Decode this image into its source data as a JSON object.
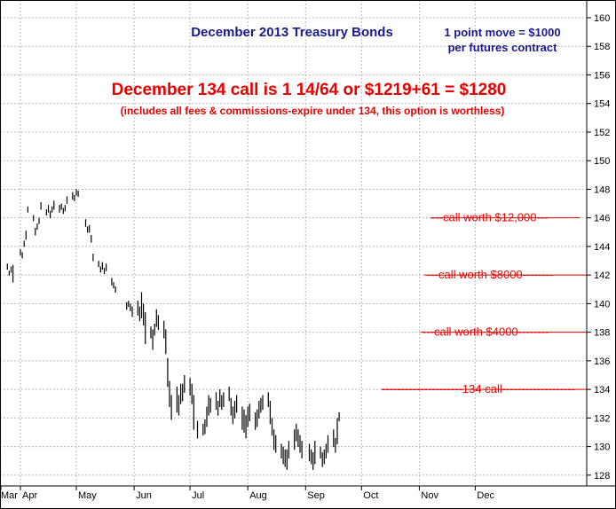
{
  "colors": {
    "title": "#1a1a8c",
    "headline": "#e60000",
    "levels": "#e60000",
    "price": "#000000",
    "grid": "#b8b8b8",
    "background": "#ffffff"
  },
  "chart_data": {
    "type": "ohlc",
    "title": "December 2013 Treasury Bonds",
    "note_line1": "1 point move = $1000",
    "note_line2": "per futures contract",
    "headline": "December 134 call is 1 14/64 or $1219+61 = $1280",
    "subheadline": "(includes all fees & commissions-expire under 134, this option is worthless)",
    "xlabel": "",
    "ylabel": "",
    "ylim": [
      127,
      161
    ],
    "y_ticks": [
      128,
      130,
      132,
      134,
      136,
      138,
      140,
      142,
      144,
      146,
      148,
      150,
      152,
      154,
      156,
      158,
      160
    ],
    "y_axis_position": "right",
    "grid": true,
    "x_ticks": [
      "Mar",
      "Apr",
      "May",
      "Jun",
      "Jul",
      "Aug",
      "Sep",
      "Oct",
      "Nov",
      "Dec"
    ],
    "levels": [
      {
        "label": "---call worth $12,000---",
        "value": 146
      },
      {
        "label": "---call worth $8000--------",
        "value": 142
      },
      {
        "label": "---call worth $4000--------",
        "value": 138
      },
      {
        "label": "---------------------134 call-------------------",
        "value": 134
      }
    ],
    "bars": [
      {
        "date": "2013-03-25",
        "high": 142.8,
        "low": 142.4
      },
      {
        "date": "2013-03-26",
        "high": 142.3,
        "low": 142.0
      },
      {
        "date": "2013-03-27",
        "high": 142.6,
        "low": 142.2
      },
      {
        "date": "2013-03-28",
        "high": 142.7,
        "low": 141.5
      },
      {
        "date": "2013-04-01",
        "high": 143.8,
        "low": 143.4
      },
      {
        "date": "2013-04-02",
        "high": 143.6,
        "low": 143.2
      },
      {
        "date": "2013-04-03",
        "high": 144.4,
        "low": 144.0
      },
      {
        "date": "2013-04-04",
        "high": 145.1,
        "low": 144.5
      },
      {
        "date": "2013-04-05",
        "high": 146.8,
        "low": 146.4
      },
      {
        "date": "2013-04-08",
        "high": 146.2,
        "low": 145.8
      },
      {
        "date": "2013-04-09",
        "high": 145.3,
        "low": 144.8
      },
      {
        "date": "2013-04-10",
        "high": 145.6,
        "low": 145.2
      },
      {
        "date": "2013-04-11",
        "high": 146.0,
        "low": 145.6
      },
      {
        "date": "2013-04-12",
        "high": 147.1,
        "low": 146.6
      },
      {
        "date": "2013-04-15",
        "high": 146.6,
        "low": 146.2
      },
      {
        "date": "2013-04-16",
        "high": 146.9,
        "low": 146.4
      },
      {
        "date": "2013-04-17",
        "high": 146.5,
        "low": 146.0
      },
      {
        "date": "2013-04-18",
        "high": 146.8,
        "low": 146.4
      },
      {
        "date": "2013-04-19",
        "high": 147.2,
        "low": 146.6
      },
      {
        "date": "2013-04-22",
        "high": 146.9,
        "low": 146.4
      },
      {
        "date": "2013-04-23",
        "high": 147.0,
        "low": 146.6
      },
      {
        "date": "2013-04-24",
        "high": 146.7,
        "low": 146.3
      },
      {
        "date": "2013-04-25",
        "high": 146.9,
        "low": 146.5
      },
      {
        "date": "2013-04-26",
        "high": 147.5,
        "low": 147.0
      },
      {
        "date": "2013-04-29",
        "high": 147.8,
        "low": 147.3
      },
      {
        "date": "2013-04-30",
        "high": 147.6,
        "low": 147.2
      },
      {
        "date": "2013-05-01",
        "high": 148.0,
        "low": 147.6
      },
      {
        "date": "2013-05-02",
        "high": 147.9,
        "low": 147.5
      },
      {
        "date": "2013-05-06",
        "high": 145.9,
        "low": 145.4
      },
      {
        "date": "2013-05-07",
        "high": 145.4,
        "low": 145.0
      },
      {
        "date": "2013-05-08",
        "high": 145.5,
        "low": 145.0
      },
      {
        "date": "2013-05-09",
        "high": 144.8,
        "low": 144.3
      },
      {
        "date": "2013-05-10",
        "high": 143.5,
        "low": 143.0
      },
      {
        "date": "2013-05-13",
        "high": 143.0,
        "low": 142.6
      },
      {
        "date": "2013-05-14",
        "high": 142.6,
        "low": 142.2
      },
      {
        "date": "2013-05-15",
        "high": 142.9,
        "low": 142.4
      },
      {
        "date": "2013-05-16",
        "high": 142.5,
        "low": 142.1
      },
      {
        "date": "2013-05-17",
        "high": 142.8,
        "low": 142.3
      },
      {
        "date": "2013-05-20",
        "high": 141.8,
        "low": 141.3
      },
      {
        "date": "2013-05-21",
        "high": 141.5,
        "low": 141.1
      },
      {
        "date": "2013-05-22",
        "high": 141.2,
        "low": 140.8
      },
      {
        "date": "2013-05-28",
        "high": 140.1,
        "low": 139.6
      },
      {
        "date": "2013-05-29",
        "high": 140.2,
        "low": 139.8
      },
      {
        "date": "2013-05-30",
        "high": 140.0,
        "low": 139.5
      },
      {
        "date": "2013-05-31",
        "high": 139.8,
        "low": 139.1
      },
      {
        "date": "2013-06-03",
        "high": 140.2,
        "low": 139.2
      },
      {
        "date": "2013-06-04",
        "high": 139.8,
        "low": 138.8
      },
      {
        "date": "2013-06-05",
        "high": 140.8,
        "low": 139.0
      },
      {
        "date": "2013-06-06",
        "high": 140.0,
        "low": 138.5
      },
      {
        "date": "2013-06-07",
        "high": 139.4,
        "low": 137.2
      },
      {
        "date": "2013-06-10",
        "high": 138.4,
        "low": 137.6
      },
      {
        "date": "2013-06-11",
        "high": 138.2,
        "low": 136.8
      },
      {
        "date": "2013-06-12",
        "high": 138.6,
        "low": 137.8
      },
      {
        "date": "2013-06-13",
        "high": 139.6,
        "low": 138.4
      },
      {
        "date": "2013-06-14",
        "high": 139.2,
        "low": 138.2
      },
      {
        "date": "2013-06-17",
        "high": 138.8,
        "low": 137.6
      },
      {
        "date": "2013-06-18",
        "high": 138.2,
        "low": 136.5
      },
      {
        "date": "2013-06-19",
        "high": 136.2,
        "low": 134.2
      },
      {
        "date": "2013-06-20",
        "high": 134.6,
        "low": 132.8
      },
      {
        "date": "2013-06-21",
        "high": 133.6,
        "low": 131.9
      },
      {
        "date": "2013-06-24",
        "high": 134.2,
        "low": 132.4
      },
      {
        "date": "2013-06-25",
        "high": 133.6,
        "low": 132.2
      },
      {
        "date": "2013-06-26",
        "high": 134.4,
        "low": 133.0
      },
      {
        "date": "2013-06-27",
        "high": 134.4,
        "low": 133.2
      },
      {
        "date": "2013-06-28",
        "high": 135.0,
        "low": 133.8
      },
      {
        "date": "2013-07-01",
        "high": 134.8,
        "low": 133.6
      },
      {
        "date": "2013-07-02",
        "high": 134.4,
        "low": 133.0
      },
      {
        "date": "2013-07-03",
        "high": 133.6,
        "low": 131.2
      },
      {
        "date": "2013-07-05",
        "high": 131.8,
        "low": 130.6
      },
      {
        "date": "2013-07-08",
        "high": 131.6,
        "low": 130.8
      },
      {
        "date": "2013-07-09",
        "high": 131.9,
        "low": 130.9
      },
      {
        "date": "2013-07-10",
        "high": 132.8,
        "low": 131.4
      },
      {
        "date": "2013-07-11",
        "high": 133.6,
        "low": 132.2
      },
      {
        "date": "2013-07-12",
        "high": 133.4,
        "low": 132.4
      },
      {
        "date": "2013-07-15",
        "high": 133.8,
        "low": 132.6
      },
      {
        "date": "2013-07-16",
        "high": 133.2,
        "low": 132.2
      },
      {
        "date": "2013-07-17",
        "high": 134.0,
        "low": 132.8
      },
      {
        "date": "2013-07-18",
        "high": 133.6,
        "low": 132.6
      },
      {
        "date": "2013-07-19",
        "high": 133.8,
        "low": 132.8
      },
      {
        "date": "2013-07-22",
        "high": 134.2,
        "low": 133.2
      },
      {
        "date": "2013-07-23",
        "high": 133.4,
        "low": 132.2
      },
      {
        "date": "2013-07-24",
        "high": 132.8,
        "low": 131.6
      },
      {
        "date": "2013-07-25",
        "high": 133.2,
        "low": 132.0
      },
      {
        "date": "2013-07-26",
        "high": 133.6,
        "low": 132.4
      },
      {
        "date": "2013-07-29",
        "high": 132.8,
        "low": 131.2
      },
      {
        "date": "2013-07-30",
        "high": 132.6,
        "low": 131.0
      },
      {
        "date": "2013-07-31",
        "high": 132.2,
        "low": 130.6
      },
      {
        "date": "2013-08-01",
        "high": 132.8,
        "low": 131.4
      },
      {
        "date": "2013-08-02",
        "high": 133.0,
        "low": 131.8
      },
      {
        "date": "2013-08-05",
        "high": 132.4,
        "low": 131.2
      },
      {
        "date": "2013-08-06",
        "high": 132.6,
        "low": 131.4
      },
      {
        "date": "2013-08-07",
        "high": 133.2,
        "low": 132.0
      },
      {
        "date": "2013-08-08",
        "high": 133.4,
        "low": 132.4
      },
      {
        "date": "2013-08-09",
        "high": 133.6,
        "low": 132.6
      },
      {
        "date": "2013-08-12",
        "high": 133.8,
        "low": 132.8
      },
      {
        "date": "2013-08-13",
        "high": 133.2,
        "low": 131.6
      },
      {
        "date": "2013-08-14",
        "high": 132.0,
        "low": 130.8
      },
      {
        "date": "2013-08-15",
        "high": 131.2,
        "low": 129.8
      },
      {
        "date": "2013-08-16",
        "high": 130.8,
        "low": 129.6
      },
      {
        "date": "2013-08-19",
        "high": 130.2,
        "low": 129.2
      },
      {
        "date": "2013-08-20",
        "high": 130.0,
        "low": 128.8
      },
      {
        "date": "2013-08-21",
        "high": 129.8,
        "low": 128.6
      },
      {
        "date": "2013-08-22",
        "high": 129.8,
        "low": 128.4
      },
      {
        "date": "2013-08-23",
        "high": 130.4,
        "low": 129.2
      },
      {
        "date": "2013-08-26",
        "high": 131.2,
        "low": 129.8
      },
      {
        "date": "2013-08-27",
        "high": 131.6,
        "low": 130.4
      },
      {
        "date": "2013-08-28",
        "high": 131.2,
        "low": 130.0
      },
      {
        "date": "2013-08-29",
        "high": 130.8,
        "low": 129.6
      },
      {
        "date": "2013-08-30",
        "high": 130.4,
        "low": 129.2
      },
      {
        "date": "2013-09-03",
        "high": 130.2,
        "low": 129.0
      },
      {
        "date": "2013-09-04",
        "high": 129.8,
        "low": 128.8
      },
      {
        "date": "2013-09-05",
        "high": 129.6,
        "low": 128.4
      },
      {
        "date": "2013-09-06",
        "high": 130.4,
        "low": 128.8
      },
      {
        "date": "2013-09-09",
        "high": 130.0,
        "low": 129.2
      },
      {
        "date": "2013-09-10",
        "high": 129.6,
        "low": 128.6
      },
      {
        "date": "2013-09-11",
        "high": 129.8,
        "low": 128.8
      },
      {
        "date": "2013-09-12",
        "high": 130.2,
        "low": 129.2
      },
      {
        "date": "2013-09-13",
        "high": 130.8,
        "low": 129.6
      },
      {
        "date": "2013-09-16",
        "high": 131.2,
        "low": 130.0
      },
      {
        "date": "2013-09-17",
        "high": 130.6,
        "low": 129.6
      },
      {
        "date": "2013-09-18",
        "high": 132.0,
        "low": 130.2
      },
      {
        "date": "2013-09-19",
        "high": 132.4,
        "low": 131.8
      }
    ]
  }
}
